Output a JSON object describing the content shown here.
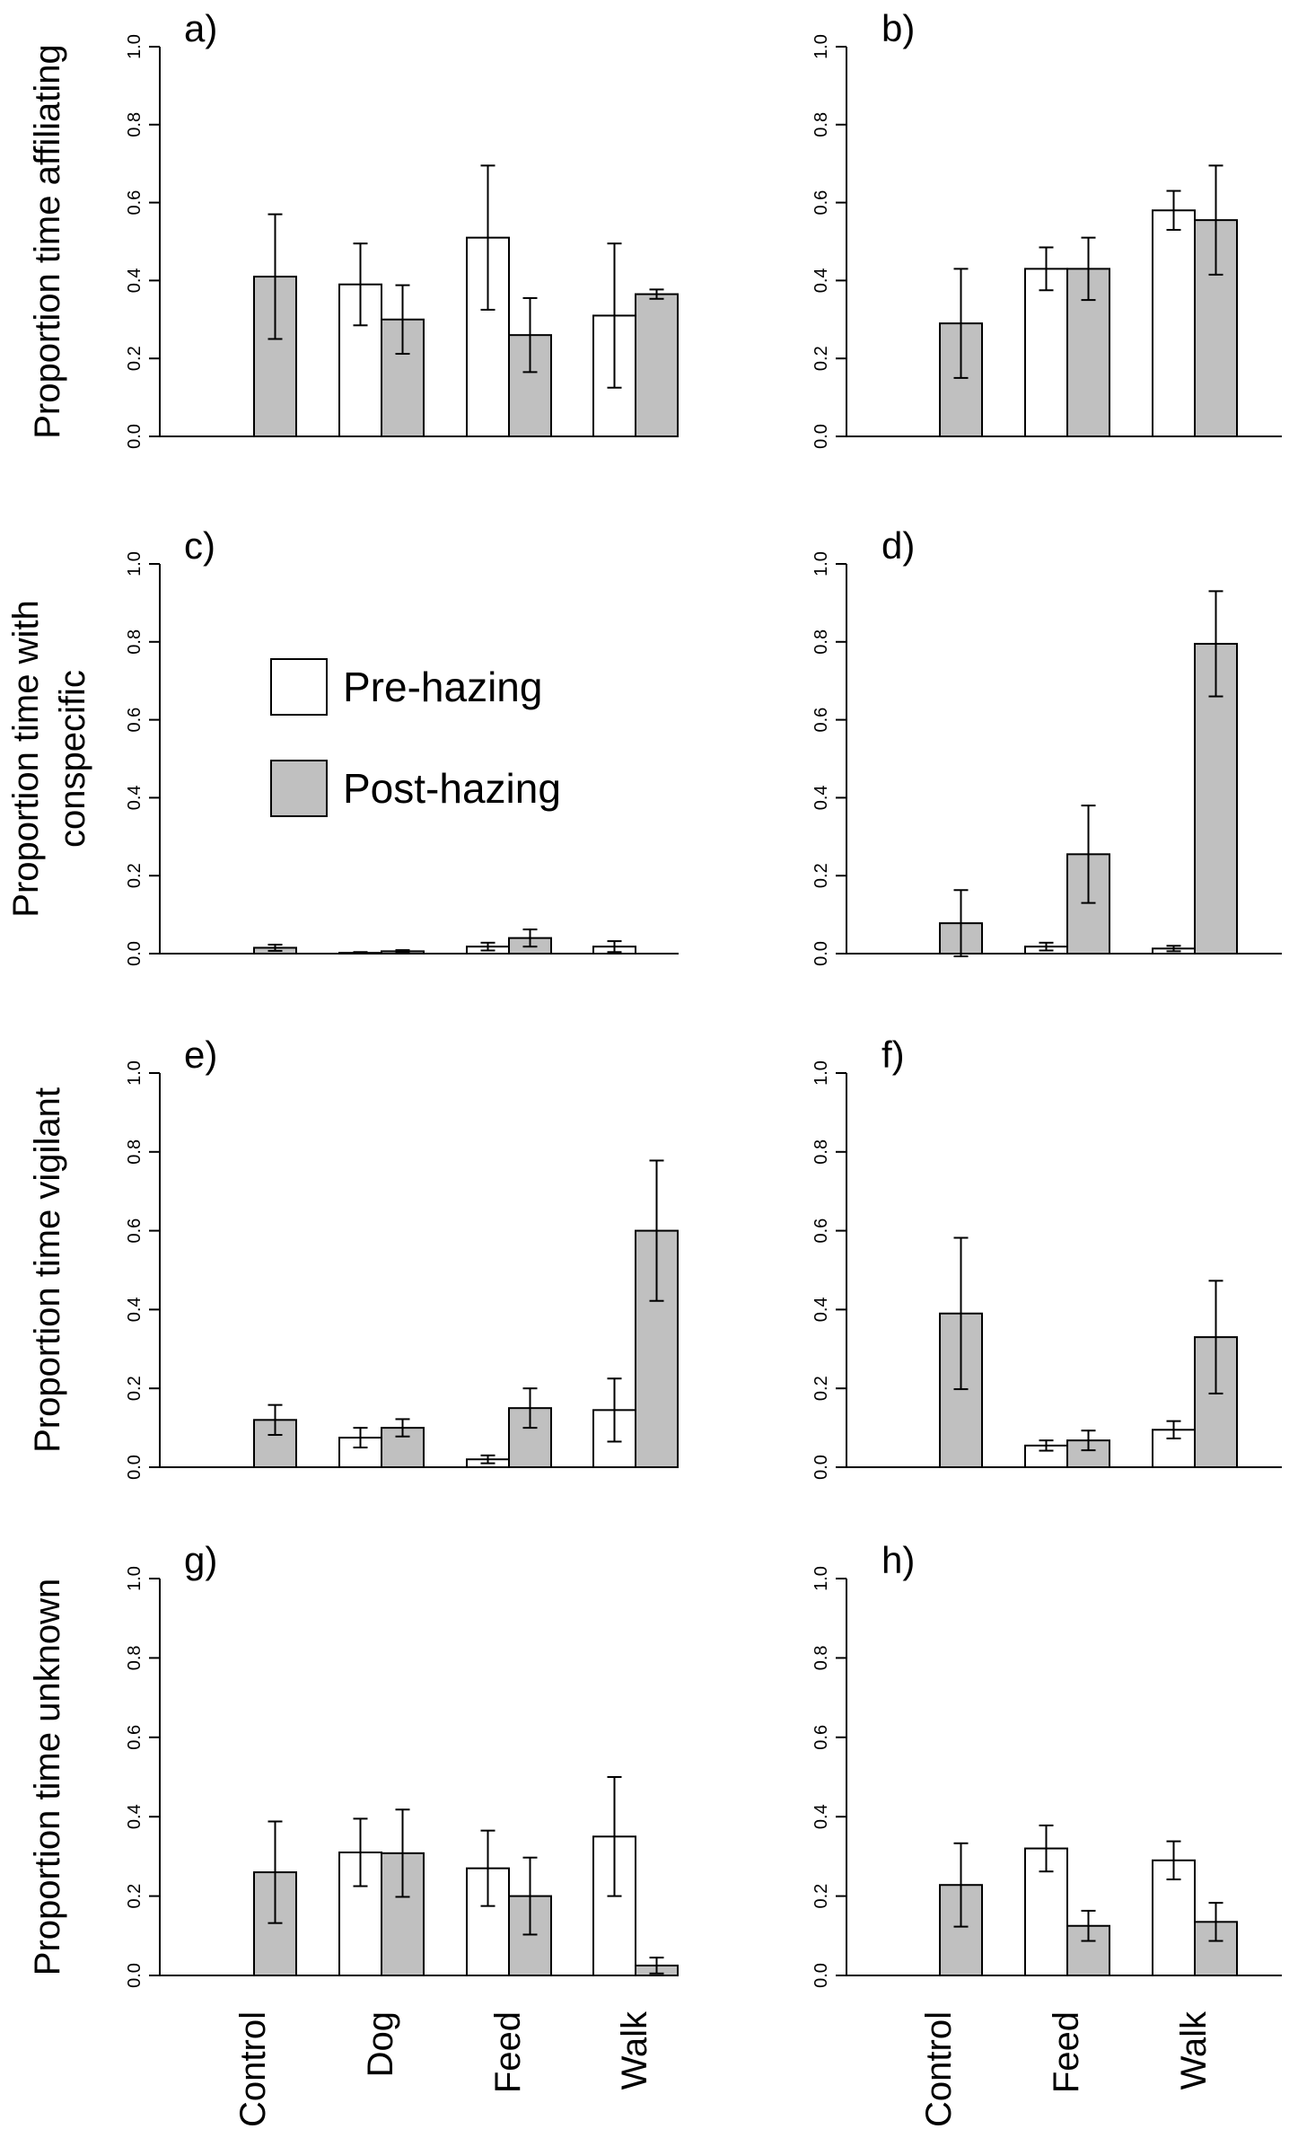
{
  "legend": {
    "items": [
      {
        "label": "Pre-hazing",
        "color": "#ffffff"
      },
      {
        "label": "Post-hazing",
        "color": "#c0c0c0"
      }
    ]
  },
  "chart_data": [
    {
      "type": "bar",
      "panel_label": "a)",
      "ylabel": "Proportion time affiliating",
      "categories": [
        "Control",
        "Dog",
        "Feed",
        "Walk"
      ],
      "ylim": [
        0,
        1
      ],
      "yticks": [
        "0.0",
        "0.2",
        "0.4",
        "0.6",
        "0.8",
        "1.0"
      ],
      "series": [
        {
          "values": [
            null,
            0.39,
            0.51,
            0.31
          ],
          "errors": [
            null,
            0.105,
            0.185,
            0.185
          ],
          "color": "#ffffff"
        },
        {
          "values": [
            0.41,
            0.3,
            0.26,
            0.365
          ],
          "errors": [
            0.16,
            0.088,
            0.095,
            0.012
          ],
          "color": "#c0c0c0"
        }
      ]
    },
    {
      "type": "bar",
      "panel_label": "b)",
      "ylabel": "",
      "categories": [
        "Control",
        "Feed",
        "Walk"
      ],
      "ylim": [
        0,
        1
      ],
      "yticks": [
        "0.0",
        "0.2",
        "0.4",
        "0.6",
        "0.8",
        "1.0"
      ],
      "series": [
        {
          "values": [
            null,
            0.43,
            0.58
          ],
          "errors": [
            null,
            0.055,
            0.05
          ],
          "color": "#ffffff"
        },
        {
          "values": [
            0.29,
            0.43,
            0.555
          ],
          "errors": [
            0.14,
            0.08,
            0.14
          ],
          "color": "#c0c0c0"
        }
      ]
    },
    {
      "type": "bar",
      "panel_label": "c)",
      "ylabel": "Proportion time with conspecific",
      "categories": [
        "Control",
        "Dog",
        "Feed",
        "Walk"
      ],
      "ylim": [
        0,
        1
      ],
      "yticks": [
        "0.0",
        "0.2",
        "0.4",
        "0.6",
        "0.8",
        "1.0"
      ],
      "series": [
        {
          "values": [
            null,
            0.002,
            0.018,
            0.018
          ],
          "errors": [
            null,
            0.002,
            0.01,
            0.014
          ],
          "color": "#ffffff"
        },
        {
          "values": [
            0.015,
            0.006,
            0.04,
            0.0
          ],
          "errors": [
            0.008,
            0.003,
            0.022,
            0.0
          ],
          "color": "#c0c0c0"
        }
      ]
    },
    {
      "type": "bar",
      "panel_label": "d)",
      "ylabel": "",
      "categories": [
        "Control",
        "Feed",
        "Walk"
      ],
      "ylim": [
        0,
        1
      ],
      "yticks": [
        "0.0",
        "0.2",
        "0.4",
        "0.6",
        "0.8",
        "1.0"
      ],
      "series": [
        {
          "values": [
            null,
            0.018,
            0.013
          ],
          "errors": [
            null,
            0.01,
            0.007
          ],
          "color": "#ffffff"
        },
        {
          "values": [
            0.078,
            0.255,
            0.795
          ],
          "errors": [
            0.085,
            0.125,
            0.135
          ],
          "color": "#c0c0c0"
        }
      ]
    },
    {
      "type": "bar",
      "panel_label": "e)",
      "ylabel": "Proportion time vigilant",
      "categories": [
        "Control",
        "Dog",
        "Feed",
        "Walk"
      ],
      "ylim": [
        0,
        1
      ],
      "yticks": [
        "0.0",
        "0.2",
        "0.4",
        "0.6",
        "0.8",
        "1.0"
      ],
      "series": [
        {
          "values": [
            null,
            0.075,
            0.02,
            0.145
          ],
          "errors": [
            null,
            0.025,
            0.01,
            0.08
          ],
          "color": "#ffffff"
        },
        {
          "values": [
            0.12,
            0.1,
            0.15,
            0.6
          ],
          "errors": [
            0.038,
            0.022,
            0.05,
            0.178
          ],
          "color": "#c0c0c0"
        }
      ]
    },
    {
      "type": "bar",
      "panel_label": "f)",
      "ylabel": "",
      "categories": [
        "Control",
        "Feed",
        "Walk"
      ],
      "ylim": [
        0,
        1
      ],
      "yticks": [
        "0.0",
        "0.2",
        "0.4",
        "0.6",
        "0.8",
        "1.0"
      ],
      "series": [
        {
          "values": [
            null,
            0.055,
            0.095
          ],
          "errors": [
            null,
            0.013,
            0.022
          ],
          "color": "#ffffff"
        },
        {
          "values": [
            0.39,
            0.068,
            0.33
          ],
          "errors": [
            0.192,
            0.025,
            0.143
          ],
          "color": "#c0c0c0"
        }
      ]
    },
    {
      "type": "bar",
      "panel_label": "g)",
      "ylabel": "Proportion time unknown",
      "categories": [
        "Control",
        "Dog",
        "Feed",
        "Walk"
      ],
      "ylim": [
        0,
        1
      ],
      "yticks": [
        "0.0",
        "0.2",
        "0.4",
        "0.6",
        "0.8",
        "1.0"
      ],
      "series": [
        {
          "values": [
            null,
            0.31,
            0.27,
            0.35
          ],
          "errors": [
            null,
            0.085,
            0.095,
            0.15
          ],
          "color": "#ffffff"
        },
        {
          "values": [
            0.26,
            0.308,
            0.2,
            0.025
          ],
          "errors": [
            0.128,
            0.11,
            0.097,
            0.02
          ],
          "color": "#c0c0c0"
        }
      ]
    },
    {
      "type": "bar",
      "panel_label": "h)",
      "ylabel": "",
      "categories": [
        "Control",
        "Feed",
        "Walk"
      ],
      "ylim": [
        0,
        1
      ],
      "yticks": [
        "0.0",
        "0.2",
        "0.4",
        "0.6",
        "0.8",
        "1.0"
      ],
      "series": [
        {
          "values": [
            null,
            0.32,
            0.29
          ],
          "errors": [
            null,
            0.058,
            0.048
          ],
          "color": "#ffffff"
        },
        {
          "values": [
            0.228,
            0.125,
            0.135
          ],
          "errors": [
            0.105,
            0.038,
            0.048
          ],
          "color": "#c0c0c0"
        }
      ]
    }
  ]
}
